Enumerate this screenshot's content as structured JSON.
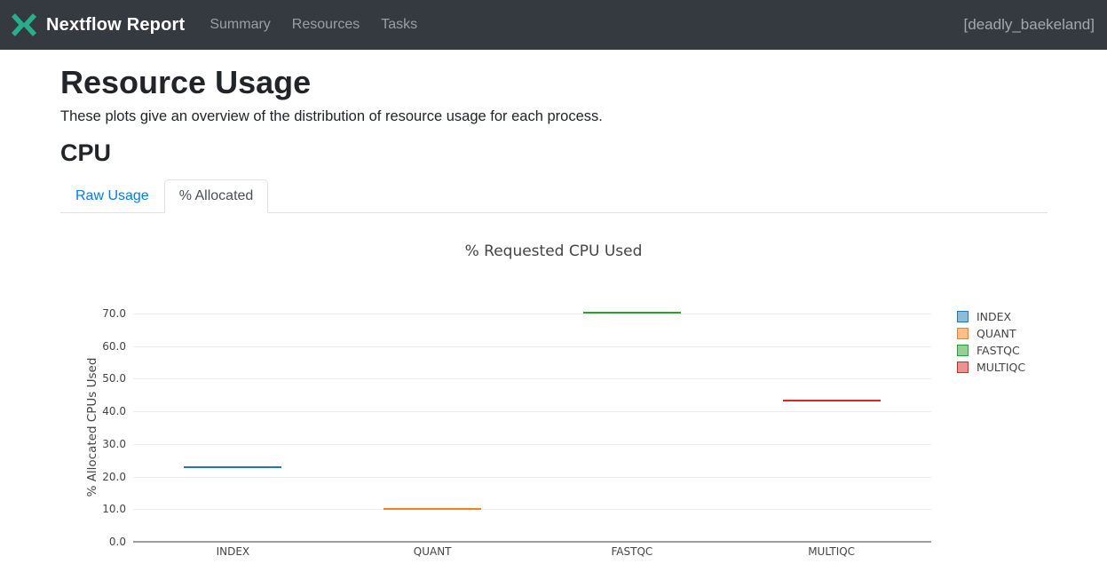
{
  "navbar": {
    "brand": "Nextflow Report",
    "brand_color": "#26af8c",
    "items": [
      {
        "label": "Summary"
      },
      {
        "label": "Resources"
      },
      {
        "label": "Tasks"
      }
    ],
    "run_name": "[deadly_baekeland]"
  },
  "page": {
    "title": "Resource Usage",
    "description": "These plots give an overview of the distribution of resource usage for each process.",
    "section_title": "CPU"
  },
  "tabs": [
    {
      "label": "Raw Usage",
      "active": false
    },
    {
      "label": "% Allocated",
      "active": true
    }
  ],
  "chart_data": {
    "type": "box",
    "title": "% Requested CPU Used",
    "xlabel": "",
    "ylabel": "% Allocated CPUs Used",
    "categories": [
      "INDEX",
      "QUANT",
      "FASTQC",
      "MULTIQC"
    ],
    "series": [
      {
        "name": "INDEX",
        "color": "#1f77b4",
        "values": [
          22.5
        ]
      },
      {
        "name": "QUANT",
        "color": "#ff7f0e",
        "values": [
          9.7
        ]
      },
      {
        "name": "FASTQC",
        "color": "#2ca02c",
        "values": [
          69.9
        ]
      },
      {
        "name": "MULTIQC",
        "color": "#d62728",
        "values": [
          42.9
        ]
      }
    ],
    "ylim": [
      0,
      70
    ],
    "yticks": [
      "0.0",
      "10.0",
      "20.0",
      "30.0",
      "40.0",
      "50.0",
      "60.0",
      "70.0"
    ],
    "grid": true,
    "legend_position": "right"
  }
}
